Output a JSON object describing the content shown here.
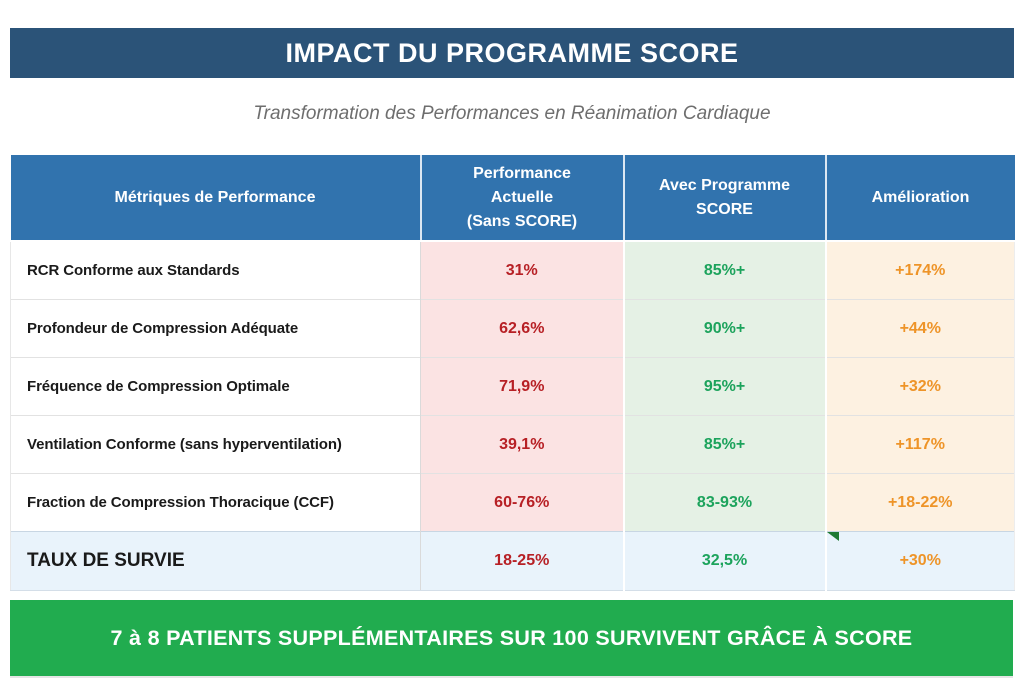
{
  "header": {
    "title": "IMPACT DU PROGRAMME SCORE"
  },
  "subtitle": "Transformation des Performances en Réanimation Cardiaque",
  "table": {
    "columns": [
      {
        "label": "Métriques de Performance"
      },
      {
        "label": "Performance\nActuelle\n(Sans SCORE)"
      },
      {
        "label": "Avec Programme\nSCORE"
      },
      {
        "label": "Amélioration"
      }
    ],
    "rows": [
      {
        "metric": "RCR Conforme aux Standards",
        "current": "31%",
        "with_score": "85%+",
        "improvement": "+174%",
        "highlight": false,
        "corner_marker": false
      },
      {
        "metric": "Profondeur de Compression Adéquate",
        "current": "62,6%",
        "with_score": "90%+",
        "improvement": "+44%",
        "highlight": false,
        "corner_marker": false
      },
      {
        "metric": "Fréquence de Compression Optimale",
        "current": "71,9%",
        "with_score": "95%+",
        "improvement": "+32%",
        "highlight": false,
        "corner_marker": false
      },
      {
        "metric": "Ventilation Conforme (sans hyperventilation)",
        "current": "39,1%",
        "with_score": "85%+",
        "improvement": "+117%",
        "highlight": false,
        "corner_marker": false
      },
      {
        "metric": "Fraction de Compression Thoracique (CCF)",
        "current": "60-76%",
        "with_score": "83-93%",
        "improvement": "+18-22%",
        "highlight": false,
        "corner_marker": false
      },
      {
        "metric": "TAUX DE SURVIE",
        "current": "18-25%",
        "with_score": "32,5%",
        "improvement": "+30%",
        "highlight": true,
        "corner_marker": true
      }
    ]
  },
  "footer_banner": {
    "label": "7 à 8 PATIENTS SUPPLÉMENTAIRES SUR 100 SURVIVENT GRÂCE À SCORE"
  },
  "colors": {
    "title_banner_bg": "#2B5378",
    "table_header_bg": "#3173AE",
    "current_cell_bg": "#FBE3E3",
    "score_cell_bg": "#E5F1E5",
    "improvement_cell_bg": "#FDF1E1",
    "highlight_row_bg": "#E9F3FB",
    "current_text": "#B72025",
    "score_text": "#1CA35C",
    "improvement_text": "#EE9428",
    "footer_banner_bg": "#21AC4F",
    "subtitle_text": "#6E6E6E",
    "corner_marker": "#1F7A33"
  }
}
